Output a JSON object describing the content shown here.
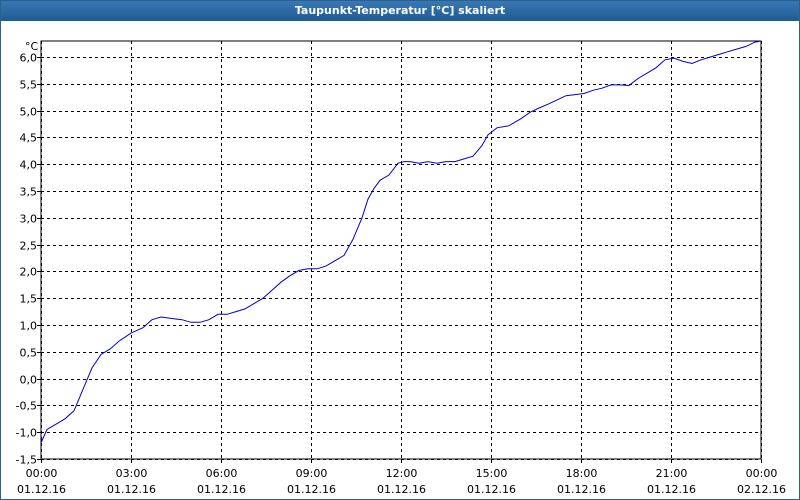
{
  "window": {
    "title": "Taupunkt-Temperatur [°C] skaliert"
  },
  "chart_data": {
    "type": "line",
    "title": "Taupunkt-Temperatur [°C] skaliert",
    "ylabel": "°C",
    "xlabel": "",
    "ylim": [
      -1.5,
      6.3
    ],
    "xlim": [
      0,
      24
    ],
    "grid": true,
    "y_ticks": [
      "6,0",
      "5,5",
      "5,0",
      "4,5",
      "4,0",
      "3,5",
      "3,0",
      "2,5",
      "2,0",
      "1,5",
      "1,0",
      "0,5",
      "0,0",
      "-0,5",
      "-1,0",
      "-1,5"
    ],
    "y_tick_values": [
      6.0,
      5.5,
      5.0,
      4.5,
      4.0,
      3.5,
      3.0,
      2.5,
      2.0,
      1.5,
      1.0,
      0.5,
      0.0,
      -0.5,
      -1.0,
      -1.5
    ],
    "x_ticks": [
      {
        "time": "00:00",
        "date": "01.12.16"
      },
      {
        "time": "03:00",
        "date": "01.12.16"
      },
      {
        "time": "06:00",
        "date": "01.12.16"
      },
      {
        "time": "09:00",
        "date": "01.12.16"
      },
      {
        "time": "12:00",
        "date": "01.12.16"
      },
      {
        "time": "15:00",
        "date": "01.12.16"
      },
      {
        "time": "18:00",
        "date": "01.12.16"
      },
      {
        "time": "21:00",
        "date": "01.12.16"
      },
      {
        "time": "00:00",
        "date": "02.12.16"
      }
    ],
    "x_tick_hours": [
      0,
      3,
      6,
      9,
      12,
      15,
      18,
      21,
      24
    ],
    "line_color": "#0000cc",
    "series": [
      {
        "x": [
          0,
          0.2,
          0.5,
          0.8,
          1.1,
          1.4,
          1.7,
          2.0,
          2.3,
          2.6,
          3.0,
          3.4,
          3.7,
          4.0,
          4.4,
          4.7,
          5.0,
          5.3,
          5.6,
          5.9,
          6.2,
          6.5,
          6.8,
          7.1,
          7.4,
          7.7,
          8.0,
          8.3,
          8.6,
          8.9,
          9.2,
          9.5,
          9.8,
          10.1,
          10.4,
          10.7,
          10.9,
          11.1,
          11.3,
          11.6,
          11.9,
          12.1,
          12.3,
          12.6,
          12.9,
          13.2,
          13.5,
          13.8,
          14.1,
          14.4,
          14.7,
          14.9,
          15.2,
          15.6,
          16.0,
          16.3,
          16.6,
          16.9,
          17.2,
          17.5,
          17.8,
          18.1,
          18.4,
          18.7,
          19.0,
          19.3,
          19.6,
          19.9,
          20.2,
          20.5,
          20.8,
          21.1,
          21.4,
          21.7,
          22.0,
          22.3,
          22.6,
          22.9,
          23.2,
          23.5,
          23.8,
          24.0
        ],
        "values": [
          -1.2,
          -0.95,
          -0.85,
          -0.75,
          -0.6,
          -0.2,
          0.2,
          0.45,
          0.55,
          0.7,
          0.85,
          0.95,
          1.1,
          1.15,
          1.12,
          1.1,
          1.05,
          1.05,
          1.1,
          1.2,
          1.2,
          1.25,
          1.3,
          1.4,
          1.5,
          1.65,
          1.8,
          1.92,
          2.02,
          2.05,
          2.05,
          2.1,
          2.2,
          2.3,
          2.6,
          3.0,
          3.35,
          3.55,
          3.7,
          3.8,
          4.02,
          4.05,
          4.05,
          4.02,
          4.05,
          4.02,
          4.05,
          4.05,
          4.1,
          4.15,
          4.35,
          4.55,
          4.68,
          4.72,
          4.85,
          4.97,
          5.05,
          5.12,
          5.2,
          5.28,
          5.3,
          5.32,
          5.38,
          5.42,
          5.48,
          5.48,
          5.47,
          5.6,
          5.7,
          5.8,
          5.95,
          5.98,
          5.92,
          5.88,
          5.95,
          6.0,
          6.05,
          6.1,
          6.15,
          6.2,
          6.28,
          6.3
        ]
      }
    ]
  }
}
